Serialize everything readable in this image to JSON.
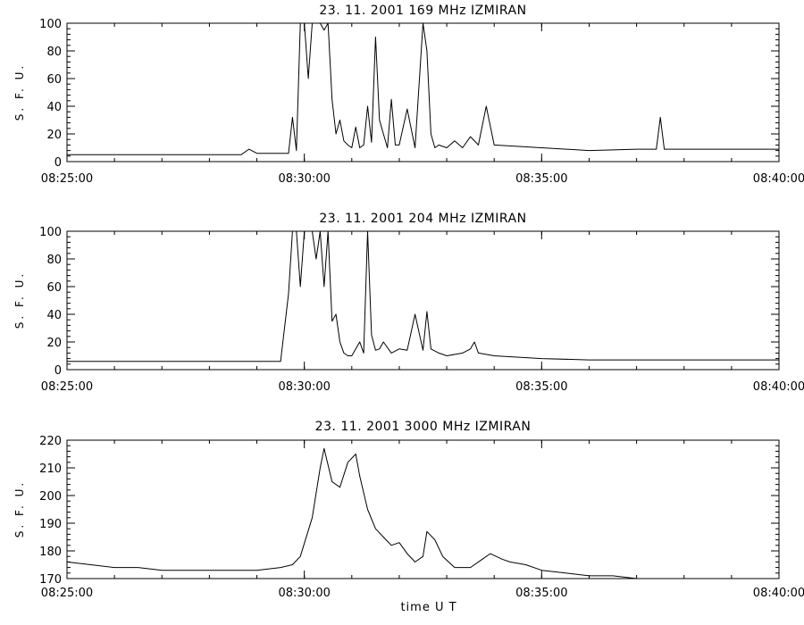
{
  "figure": {
    "xlabel": "time   U T"
  },
  "chart_data": [
    {
      "type": "line",
      "title": "23.  11.  2001   169 MHz   IZMIRAN",
      "ylabel": "S. F. U.",
      "xlabel": "",
      "xlim": [
        "08:25:00",
        "08:40:00"
      ],
      "ylim": [
        0,
        100
      ],
      "x_ticks": [
        "08:25:00",
        "08:30:00",
        "08:35:00",
        "08:40:00"
      ],
      "y_ticks": [
        0,
        20,
        40,
        60,
        80,
        100
      ],
      "series": [
        {
          "x": [
            "08:25:00",
            "08:26:00",
            "08:27:00",
            "08:28:00",
            "08:28:40",
            "08:28:50",
            "08:29:00",
            "08:29:20",
            "08:29:40",
            "08:29:45",
            "08:29:50",
            "08:29:55",
            "08:30:00",
            "08:30:05",
            "08:30:10",
            "08:30:15",
            "08:30:20",
            "08:30:25",
            "08:30:30",
            "08:30:35",
            "08:30:40",
            "08:30:45",
            "08:30:50",
            "08:30:55",
            "08:31:00",
            "08:31:05",
            "08:31:10",
            "08:31:15",
            "08:31:20",
            "08:31:25",
            "08:31:30",
            "08:31:35",
            "08:31:40",
            "08:31:45",
            "08:31:50",
            "08:31:55",
            "08:32:00",
            "08:32:10",
            "08:32:20",
            "08:32:30",
            "08:32:35",
            "08:32:40",
            "08:32:45",
            "08:32:50",
            "08:33:00",
            "08:33:10",
            "08:33:20",
            "08:33:30",
            "08:33:40",
            "08:33:50",
            "08:34:00",
            "08:35:00",
            "08:36:00",
            "08:37:00",
            "08:37:25",
            "08:37:30",
            "08:37:35",
            "08:38:00",
            "08:39:00",
            "08:40:00"
          ],
          "y": [
            5,
            5,
            5,
            5,
            5,
            9,
            6,
            6,
            6,
            32,
            8,
            100,
            100,
            60,
            100,
            100,
            100,
            95,
            100,
            45,
            20,
            30,
            15,
            12,
            10,
            25,
            10,
            12,
            40,
            14,
            90,
            30,
            20,
            10,
            45,
            12,
            12,
            38,
            10,
            100,
            80,
            20,
            10,
            12,
            10,
            15,
            10,
            18,
            12,
            40,
            12,
            10,
            8,
            9,
            9,
            32,
            9,
            9,
            9,
            9
          ]
        }
      ]
    },
    {
      "type": "line",
      "title": "23.  11.  2001   204 MHz   IZMIRAN",
      "ylabel": "S. F. U.",
      "xlabel": "",
      "xlim": [
        "08:25:00",
        "08:40:00"
      ],
      "ylim": [
        0,
        100
      ],
      "x_ticks": [
        "08:25:00",
        "08:30:00",
        "08:35:00",
        "08:40:00"
      ],
      "y_ticks": [
        0,
        20,
        40,
        60,
        80,
        100
      ],
      "series": [
        {
          "x": [
            "08:25:00",
            "08:26:00",
            "08:27:00",
            "08:28:00",
            "08:29:00",
            "08:29:30",
            "08:29:40",
            "08:29:45",
            "08:29:50",
            "08:29:55",
            "08:30:00",
            "08:30:05",
            "08:30:10",
            "08:30:15",
            "08:30:20",
            "08:30:25",
            "08:30:30",
            "08:30:35",
            "08:30:40",
            "08:30:45",
            "08:30:50",
            "08:30:55",
            "08:31:00",
            "08:31:05",
            "08:31:10",
            "08:31:15",
            "08:31:20",
            "08:31:25",
            "08:31:30",
            "08:31:35",
            "08:31:40",
            "08:31:50",
            "08:32:00",
            "08:32:10",
            "08:32:20",
            "08:32:30",
            "08:32:35",
            "08:32:40",
            "08:32:50",
            "08:33:00",
            "08:33:20",
            "08:33:30",
            "08:33:35",
            "08:33:40",
            "08:34:00",
            "08:35:00",
            "08:36:00",
            "08:37:00",
            "08:38:00",
            "08:39:00",
            "08:40:00"
          ],
          "y": [
            6,
            6,
            6,
            6,
            6,
            6,
            55,
            100,
            100,
            60,
            100,
            100,
            100,
            80,
            100,
            60,
            100,
            35,
            40,
            20,
            12,
            10,
            10,
            15,
            20,
            12,
            100,
            25,
            14,
            15,
            20,
            12,
            15,
            14,
            40,
            14,
            42,
            15,
            12,
            10,
            12,
            15,
            20,
            12,
            10,
            8,
            7,
            7,
            7,
            7,
            7
          ]
        }
      ]
    },
    {
      "type": "line",
      "title": "23.  11.  2001   3000 MHz   IZMIRAN",
      "ylabel": "S. F. U.",
      "xlabel": "time   U T",
      "xlim": [
        "08:25:00",
        "08:40:00"
      ],
      "ylim": [
        170,
        220
      ],
      "x_ticks": [
        "08:25:00",
        "08:30:00",
        "08:35:00",
        "08:40:00"
      ],
      "y_ticks": [
        170,
        180,
        190,
        200,
        210,
        220
      ],
      "series": [
        {
          "x": [
            "08:25:00",
            "08:25:30",
            "08:26:00",
            "08:26:30",
            "08:27:00",
            "08:27:30",
            "08:28:00",
            "08:28:30",
            "08:29:00",
            "08:29:30",
            "08:29:45",
            "08:29:55",
            "08:30:10",
            "08:30:20",
            "08:30:25",
            "08:30:35",
            "08:30:45",
            "08:30:55",
            "08:31:05",
            "08:31:10",
            "08:31:20",
            "08:31:30",
            "08:31:40",
            "08:31:50",
            "08:32:00",
            "08:32:10",
            "08:32:20",
            "08:32:30",
            "08:32:35",
            "08:32:45",
            "08:32:55",
            "08:33:10",
            "08:33:20",
            "08:33:30",
            "08:33:45",
            "08:33:55",
            "08:34:10",
            "08:34:20",
            "08:34:40",
            "08:35:00",
            "08:35:30",
            "08:36:00",
            "08:36:30",
            "08:37:00",
            "08:37:30",
            "08:38:00",
            "08:38:30",
            "08:39:00",
            "08:39:30",
            "08:40:00"
          ],
          "y": [
            176,
            175,
            174,
            174,
            173,
            173,
            173,
            173,
            173,
            174,
            175,
            178,
            192,
            210,
            217,
            205,
            203,
            212,
            215,
            207,
            195,
            188,
            185,
            182,
            183,
            179,
            176,
            178,
            187,
            184,
            178,
            174,
            174,
            174,
            177,
            179,
            177,
            176,
            175,
            173,
            172,
            171,
            171,
            170,
            170,
            170,
            170,
            170,
            170,
            170
          ]
        }
      ]
    }
  ]
}
